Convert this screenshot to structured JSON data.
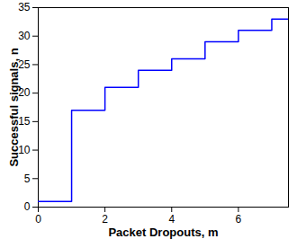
{
  "chart_data": {
    "type": "line",
    "x": [
      0,
      1,
      2,
      3,
      4,
      5,
      6,
      7,
      7.5
    ],
    "values": [
      1,
      17,
      21,
      24,
      26,
      29,
      31,
      33,
      33
    ],
    "x_label": "Packet Dropouts, m",
    "y_label": "Successful signals, n",
    "color": "#0000ff",
    "line_style": "step",
    "xlim": [
      0,
      7.5
    ],
    "xticks": [
      0,
      2,
      4,
      6
    ],
    "ylim": [
      0,
      35
    ],
    "yticks": [
      0,
      5,
      10,
      15,
      20,
      25,
      30,
      35
    ],
    "grid": false
  }
}
